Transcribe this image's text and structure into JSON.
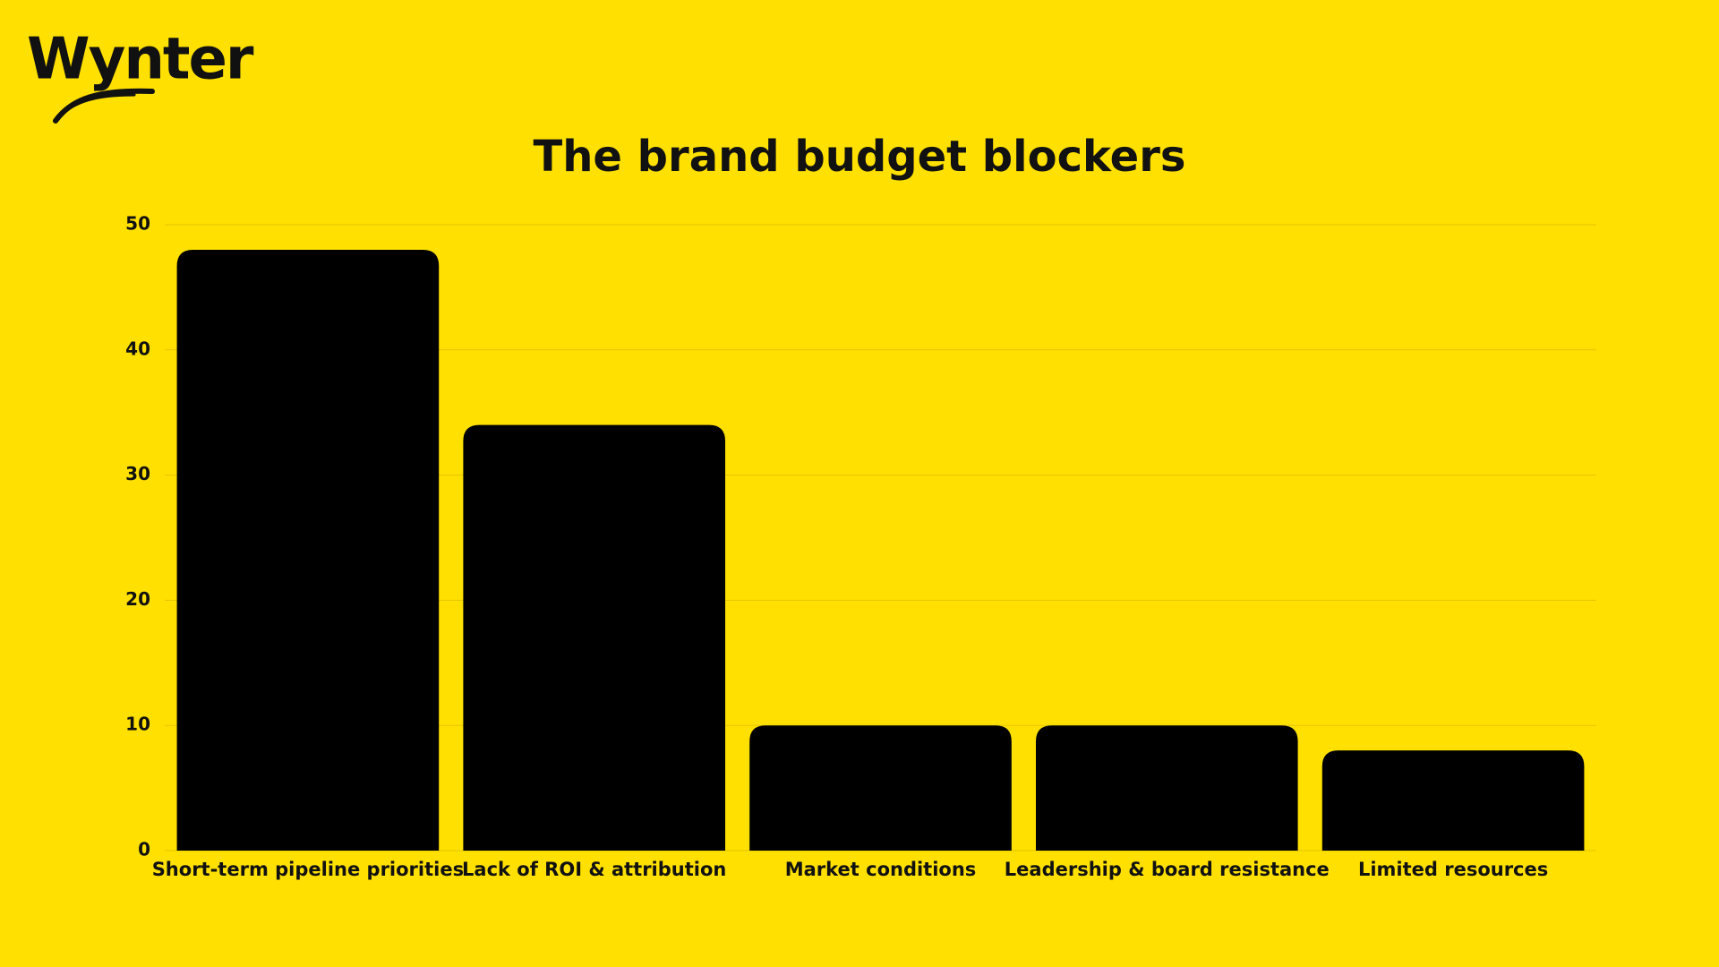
{
  "logo": "Wynter",
  "chart_data": {
    "type": "bar",
    "title": "The brand budget blockers",
    "categories": [
      "Short-term pipeline priorities",
      "Lack of ROI & attribution",
      "Market conditions",
      "Leadership & board resistance",
      "Limited resources"
    ],
    "values": [
      48,
      34,
      10,
      10,
      8
    ],
    "color": "#000000",
    "ylim": [
      0,
      50
    ],
    "yticks": [
      0,
      10,
      20,
      30,
      40,
      50
    ],
    "grid": true
  }
}
